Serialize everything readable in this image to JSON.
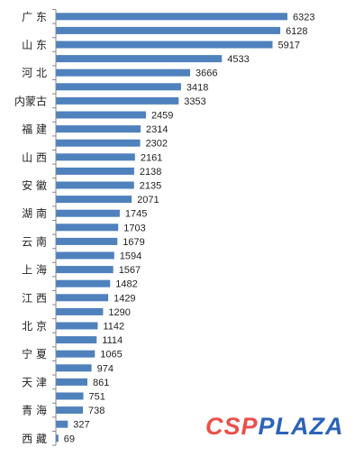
{
  "chart_data": {
    "type": "bar",
    "orientation": "horizontal",
    "bar_color": "#4f81bd",
    "categories": [
      "广 东",
      "",
      "山 东",
      "",
      "河 北",
      "",
      "内蒙古",
      "",
      "福 建",
      "",
      "山 西",
      "",
      "安 徽",
      "",
      "湖 南",
      "",
      "云 南",
      "",
      "上 海",
      "",
      "江 西",
      "",
      "北 京",
      "",
      "宁 夏",
      "",
      "天 津",
      "",
      "青 海",
      "",
      "西 藏"
    ],
    "values": [
      6323,
      6128,
      5917,
      4533,
      3666,
      3418,
      3353,
      2459,
      2314,
      2302,
      2161,
      2138,
      2135,
      2071,
      1745,
      1703,
      1679,
      1594,
      1567,
      1482,
      1429,
      1290,
      1142,
      1114,
      1065,
      974,
      861,
      751,
      738,
      327,
      69
    ],
    "xlim": [
      0,
      6500
    ],
    "data_labels": true,
    "grid": false,
    "legend": "none"
  },
  "watermark": {
    "part1": "CSP",
    "part2": "PLAZA"
  }
}
